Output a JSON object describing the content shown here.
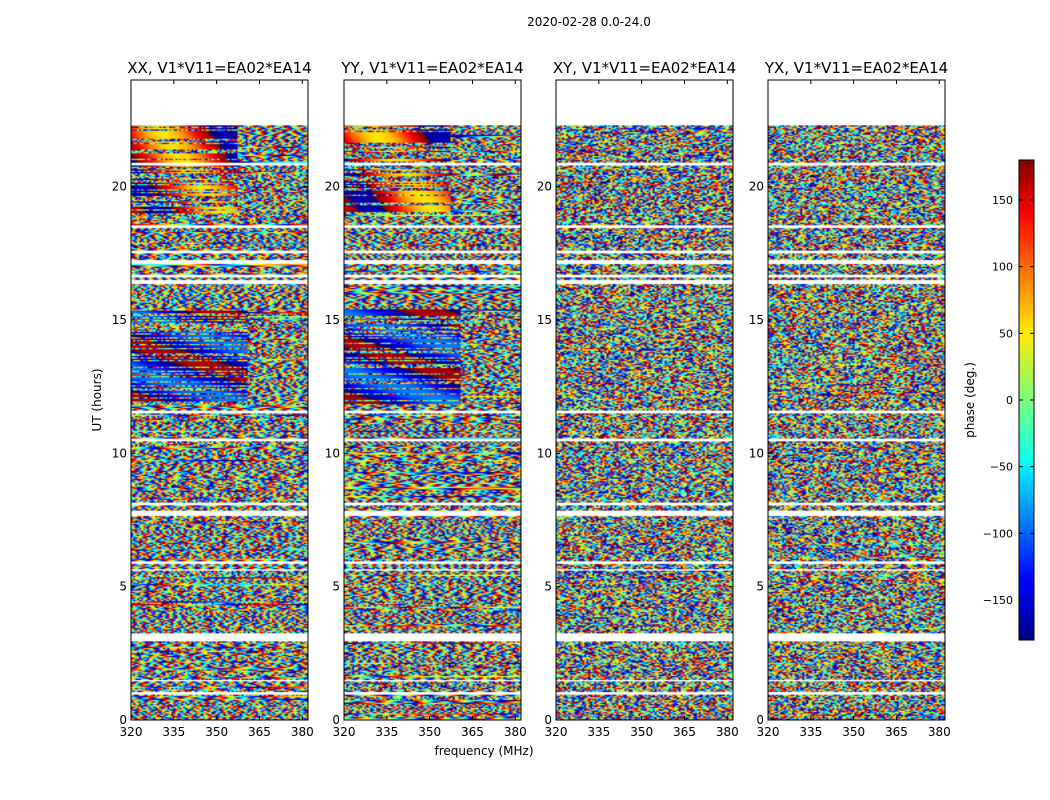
{
  "chart_data": {
    "type": "heatmap",
    "suptitle": "2020-02-28 0.0-24.0",
    "xlabel": "frequency (MHz)",
    "ylabel": "UT (hours)",
    "xlim": [
      320,
      382
    ],
    "ylim": [
      0,
      24
    ],
    "xticks": [
      320,
      335,
      350,
      365,
      380
    ],
    "yticks": [
      0,
      5,
      10,
      15,
      20
    ],
    "data_ut_range": [
      0.0,
      22.3
    ],
    "flagged_ut_bands": [
      [
        0.95,
        1.05
      ],
      [
        1.45,
        1.5
      ],
      [
        2.95,
        3.25
      ],
      [
        5.6,
        5.65
      ],
      [
        5.85,
        5.95
      ],
      [
        7.65,
        7.85
      ],
      [
        8.05,
        8.15
      ],
      [
        10.45,
        10.55
      ],
      [
        11.5,
        11.6
      ],
      [
        16.35,
        16.5
      ],
      [
        16.6,
        16.7
      ],
      [
        17.1,
        17.25
      ],
      [
        17.5,
        17.6
      ],
      [
        18.45,
        18.55
      ],
      [
        20.8,
        20.9
      ]
    ],
    "panels": [
      {
        "title": "XX, V1*V11=EA02*EA14",
        "pol": "XX"
      },
      {
        "title": "YY, V1*V11=EA02*EA14",
        "pol": "YY"
      },
      {
        "title": "XY, V1*V11=EA02*EA14",
        "pol": "XY"
      },
      {
        "title": "YX, V1*V11=EA02*EA14",
        "pol": "YX"
      }
    ],
    "colorbar": {
      "label": "phase (deg.)",
      "range": [
        -180,
        180
      ],
      "ticks": [
        150,
        100,
        50,
        0,
        -50,
        -100,
        -150
      ],
      "tick_labels": [
        "150",
        "100",
        "50",
        "0",
        "−50",
        "−100",
        "−150"
      ],
      "colormap": "jet"
    }
  }
}
